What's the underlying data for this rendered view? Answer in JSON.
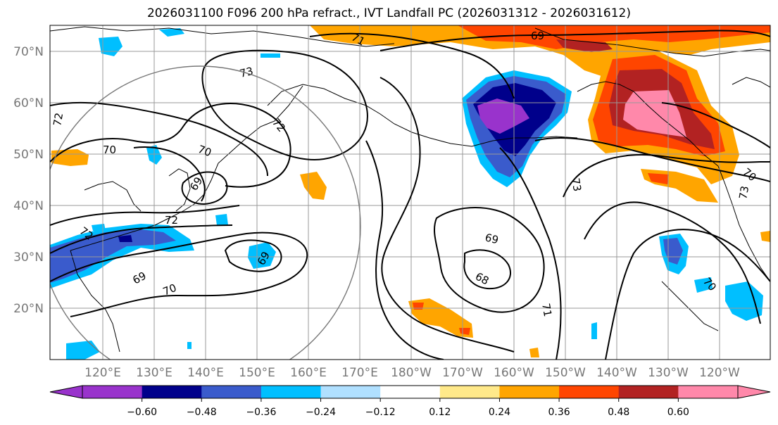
{
  "title": "2026031100 F096 200 hPa refract., IVT Landfall PC (2026031312 - 2026031612)",
  "lat_labels": [
    "70°N",
    "60°N",
    "50°N",
    "40°N",
    "30°N",
    "20°N"
  ],
  "lon_labels": [
    "120°E",
    "130°E",
    "140°E",
    "150°E",
    "160°E",
    "170°E",
    "180°W",
    "170°W",
    "160°W",
    "150°W",
    "140°W",
    "130°W",
    "120°W"
  ],
  "colorbar": {
    "colors": [
      "#9933cc",
      "#00008b",
      "#3a5bcc",
      "#00bfff",
      "#b0e0ff",
      "#ffffff",
      "#ffe98a",
      "#ffa500",
      "#ff4500",
      "#b22222",
      "#ff88aa"
    ],
    "ticks": [
      "−0.60",
      "−0.48",
      "−0.36",
      "−0.24",
      "−0.12",
      "0.12",
      "0.24",
      "0.36",
      "0.48",
      "0.60"
    ],
    "extend_low_color": "#9933cc",
    "extend_high_color": "#ff88aa"
  },
  "contour_labels": [
    "71",
    "69",
    "73",
    "72",
    "70",
    "70",
    "69",
    "72",
    "72",
    "69",
    "69",
    "70",
    "69",
    "68",
    "71",
    "73",
    "70",
    "73",
    "70",
    "72"
  ]
}
